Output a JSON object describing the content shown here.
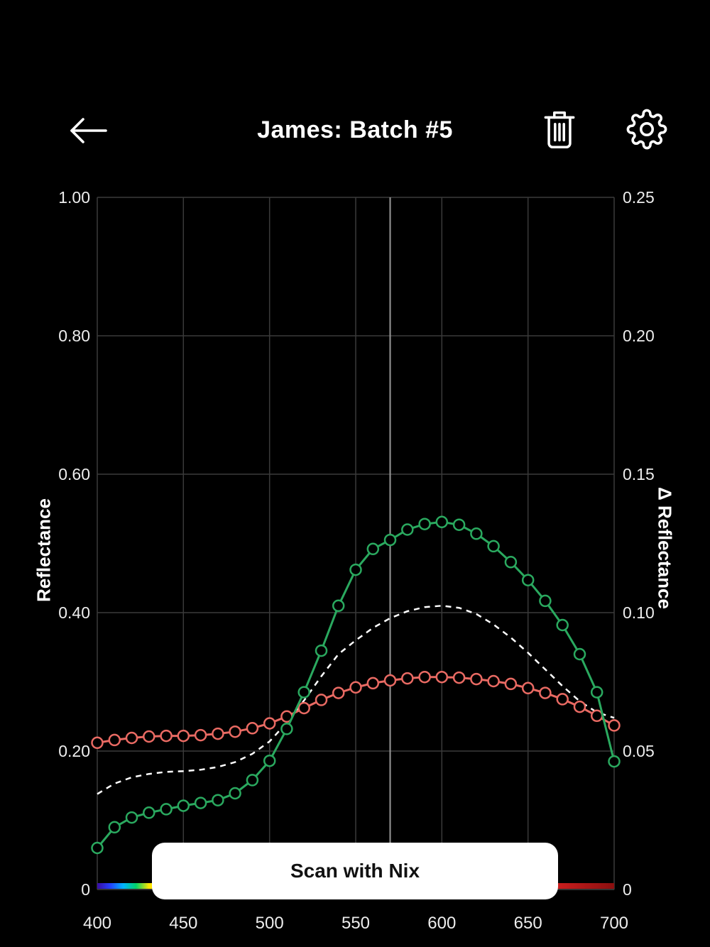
{
  "header": {
    "title": "James: Batch #5",
    "icons": [
      "back-arrow",
      "trash",
      "settings-gear"
    ]
  },
  "scan_button": {
    "label": "Scan with Nix"
  },
  "colors": {
    "background": "#000000",
    "grid": "#3a3a3a",
    "cursor_line": "#999999",
    "green_series": "#2aa95f",
    "red_series": "#e96a63",
    "dashed_series": "#ffffff",
    "button_bg": "#ffffff",
    "button_text": "#111111"
  },
  "chart_data": {
    "type": "line",
    "title": "",
    "x_axis": {
      "label": "",
      "range": [
        400,
        700
      ],
      "ticks": [
        {
          "label": "400",
          "value": 400
        },
        {
          "label": "450",
          "value": 450
        },
        {
          "label": "500",
          "value": 500
        },
        {
          "label": "550",
          "value": 550
        },
        {
          "label": "600",
          "value": 600
        },
        {
          "label": "650",
          "value": 650
        },
        {
          "label": "700",
          "value": 700
        }
      ]
    },
    "left_axis": {
      "label": "Reflectance",
      "range": [
        0,
        1
      ],
      "ticks": [
        {
          "label": "1.00",
          "value": 1.0
        },
        {
          "label": "0.80",
          "value": 0.8
        },
        {
          "label": "0.60",
          "value": 0.6
        },
        {
          "label": "0.40",
          "value": 0.4
        },
        {
          "label": "0.20",
          "value": 0.2
        },
        {
          "label": "0",
          "value": 0
        }
      ]
    },
    "right_axis": {
      "label": "Δ Reflectance",
      "range": [
        0,
        0.25
      ],
      "ticks": [
        {
          "label": "0.25",
          "value": 0.25
        },
        {
          "label": "0.20",
          "value": 0.2
        },
        {
          "label": "0.15",
          "value": 0.15
        },
        {
          "label": "0.10",
          "value": 0.1
        },
        {
          "label": "0.05",
          "value": 0.05
        },
        {
          "label": "0",
          "value": 0
        }
      ]
    },
    "cursor_wavelength": 570,
    "x": [
      400,
      410,
      420,
      430,
      440,
      450,
      460,
      470,
      480,
      490,
      500,
      510,
      520,
      530,
      540,
      550,
      560,
      570,
      580,
      590,
      600,
      610,
      620,
      630,
      640,
      650,
      660,
      670,
      680,
      690,
      700
    ],
    "series": [
      {
        "name": "white-dashed-curve",
        "color": "#ffffff",
        "axis": "left",
        "marker": "none",
        "dash": "8 7",
        "width": 2.5,
        "values": [
          0.138,
          0.153,
          0.162,
          0.167,
          0.17,
          0.171,
          0.173,
          0.177,
          0.184,
          0.196,
          0.214,
          0.241,
          0.273,
          0.308,
          0.34,
          0.36,
          0.378,
          0.392,
          0.402,
          0.408,
          0.41,
          0.407,
          0.398,
          0.383,
          0.364,
          0.342,
          0.318,
          0.294,
          0.272,
          0.256,
          0.248
        ]
      },
      {
        "name": "red-curve",
        "color": "#e96a63",
        "axis": "left",
        "marker": "circle",
        "dash": "",
        "width": 3,
        "values": [
          0.212,
          0.216,
          0.219,
          0.221,
          0.222,
          0.222,
          0.223,
          0.225,
          0.228,
          0.233,
          0.24,
          0.25,
          0.262,
          0.274,
          0.284,
          0.292,
          0.298,
          0.302,
          0.305,
          0.307,
          0.307,
          0.306,
          0.304,
          0.301,
          0.297,
          0.291,
          0.284,
          0.275,
          0.264,
          0.251,
          0.237
        ]
      },
      {
        "name": "green-curve",
        "color": "#2aa95f",
        "axis": "left",
        "marker": "circle",
        "dash": "",
        "width": 3,
        "values": [
          0.06,
          0.09,
          0.104,
          0.111,
          0.116,
          0.121,
          0.125,
          0.129,
          0.139,
          0.158,
          0.186,
          0.232,
          0.285,
          0.345,
          0.41,
          0.462,
          0.492,
          0.505,
          0.52,
          0.528,
          0.531,
          0.527,
          0.514,
          0.496,
          0.473,
          0.447,
          0.417,
          0.382,
          0.34,
          0.285,
          0.185
        ]
      }
    ],
    "spectrum_strip": {
      "stops": [
        {
          "offset": 0,
          "color": "#3a0ca3"
        },
        {
          "offset": 0.025,
          "color": "#2440ff"
        },
        {
          "offset": 0.05,
          "color": "#00b4ff"
        },
        {
          "offset": 0.075,
          "color": "#00d26a"
        },
        {
          "offset": 0.1,
          "color": "#ffe600"
        },
        {
          "offset": 0.45,
          "color": "#ff9900"
        },
        {
          "offset": 0.8,
          "color": "#ff2a2a"
        },
        {
          "offset": 1,
          "color": "#8a0f0f"
        }
      ]
    },
    "grid": "on",
    "legend": "none"
  }
}
